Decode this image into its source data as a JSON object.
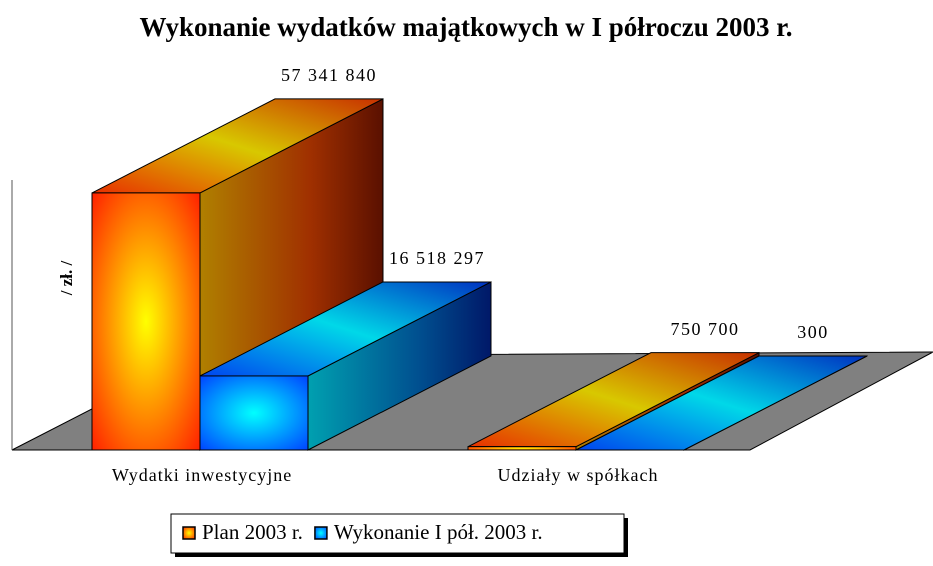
{
  "chart_data": {
    "type": "bar3d",
    "title": "Wykonanie wydatków majątkowych w I półroczu 2003 r.",
    "y_label": "/ zł. /",
    "categories": [
      "Wydatki inwestycyjne",
      "Udziały w spółkach"
    ],
    "series": [
      {
        "name": "Plan 2003 r.",
        "color": "#ff3300",
        "values": [
          57341840,
          750700
        ],
        "value_labels": [
          "57 341 840",
          "750 700"
        ]
      },
      {
        "name": "Wykonanie I pół. 2003 r.",
        "color": "#0066ff",
        "values": [
          16518297,
          300
        ],
        "value_labels": [
          "16 518 297",
          "300"
        ]
      }
    ],
    "ylim": [
      0,
      60000000
    ],
    "legend": "bottom"
  }
}
